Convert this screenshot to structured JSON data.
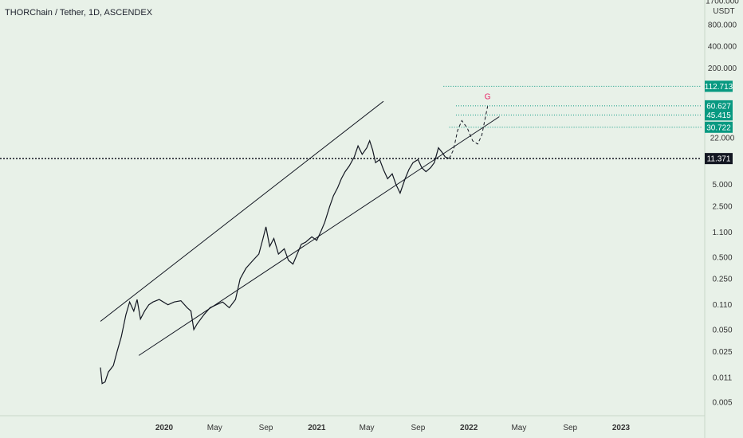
{
  "header": {
    "title": "THORChain / Tether, 1D, ASCENDEX"
  },
  "chart_data": {
    "type": "line",
    "scale": "log",
    "currency": "USDT",
    "y_tick_labels": [
      "1700.000",
      "800.000",
      "400.000",
      "200.000",
      "22.000",
      "5.000",
      "2.500",
      "1.100",
      "0.500",
      "0.250",
      "0.110",
      "0.050",
      "0.025",
      "0.011",
      "0.005"
    ],
    "y_ticks": [
      1700,
      800,
      400,
      200,
      22,
      5,
      2.5,
      1.1,
      0.5,
      0.25,
      0.11,
      0.05,
      0.025,
      0.011,
      0.005
    ],
    "x_tick_labels": [
      "2020",
      "May",
      "Sep",
      "2021",
      "May",
      "Sep",
      "2022",
      "May",
      "Sep",
      "2023"
    ],
    "x_tick_dates": [
      "2020-01-01",
      "2020-05-01",
      "2020-09-01",
      "2021-01-01",
      "2021-05-01",
      "2021-09-01",
      "2022-01-01",
      "2022-05-01",
      "2022-09-01",
      "2023-01-01"
    ],
    "x_tick_bold": [
      true,
      false,
      false,
      true,
      false,
      false,
      true,
      false,
      false,
      true
    ],
    "series": [
      {
        "type": "price",
        "points": [
          [
            "2019-08-01",
            0.015
          ],
          [
            "2019-08-05",
            0.009
          ],
          [
            "2019-08-12",
            0.0095
          ],
          [
            "2019-08-20",
            0.013
          ],
          [
            "2019-09-01",
            0.016
          ],
          [
            "2019-09-10",
            0.025
          ],
          [
            "2019-09-20",
            0.04
          ],
          [
            "2019-10-01",
            0.08
          ],
          [
            "2019-10-10",
            0.12
          ],
          [
            "2019-10-20",
            0.09
          ],
          [
            "2019-10-28",
            0.13
          ],
          [
            "2019-11-05",
            0.07
          ],
          [
            "2019-11-15",
            0.09
          ],
          [
            "2019-11-25",
            0.11
          ],
          [
            "2019-12-05",
            0.12
          ],
          [
            "2019-12-20",
            0.13
          ],
          [
            "2020-01-10",
            0.11
          ],
          [
            "2020-01-25",
            0.12
          ],
          [
            "2020-02-10",
            0.125
          ],
          [
            "2020-02-25",
            0.1
          ],
          [
            "2020-03-05",
            0.09
          ],
          [
            "2020-03-12",
            0.05
          ],
          [
            "2020-03-20",
            0.06
          ],
          [
            "2020-04-05",
            0.08
          ],
          [
            "2020-04-20",
            0.1
          ],
          [
            "2020-05-05",
            0.11
          ],
          [
            "2020-05-20",
            0.12
          ],
          [
            "2020-06-05",
            0.1
          ],
          [
            "2020-06-20",
            0.13
          ],
          [
            "2020-07-01",
            0.25
          ],
          [
            "2020-07-15",
            0.35
          ],
          [
            "2020-08-01",
            0.45
          ],
          [
            "2020-08-15",
            0.55
          ],
          [
            "2020-08-25",
            0.9
          ],
          [
            "2020-09-01",
            1.3
          ],
          [
            "2020-09-10",
            0.7
          ],
          [
            "2020-09-20",
            0.9
          ],
          [
            "2020-10-01",
            0.55
          ],
          [
            "2020-10-15",
            0.65
          ],
          [
            "2020-10-25",
            0.45
          ],
          [
            "2020-11-05",
            0.4
          ],
          [
            "2020-11-15",
            0.55
          ],
          [
            "2020-11-25",
            0.75
          ],
          [
            "2020-12-05",
            0.8
          ],
          [
            "2020-12-20",
            0.95
          ],
          [
            "2021-01-01",
            0.85
          ],
          [
            "2021-01-10",
            1.1
          ],
          [
            "2021-01-20",
            1.5
          ],
          [
            "2021-02-01",
            2.5
          ],
          [
            "2021-02-10",
            3.5
          ],
          [
            "2021-02-20",
            4.5
          ],
          [
            "2021-03-01",
            6
          ],
          [
            "2021-03-10",
            7.5
          ],
          [
            "2021-03-20",
            9
          ],
          [
            "2021-04-01",
            12
          ],
          [
            "2021-04-10",
            17
          ],
          [
            "2021-04-20",
            13
          ],
          [
            "2021-05-01",
            16
          ],
          [
            "2021-05-08",
            20
          ],
          [
            "2021-05-15",
            15
          ],
          [
            "2021-05-22",
            10
          ],
          [
            "2021-06-01",
            11
          ],
          [
            "2021-06-10",
            8
          ],
          [
            "2021-06-20",
            6
          ],
          [
            "2021-07-01",
            7
          ],
          [
            "2021-07-10",
            5
          ],
          [
            "2021-07-20",
            3.8
          ],
          [
            "2021-08-01",
            6
          ],
          [
            "2021-08-10",
            8
          ],
          [
            "2021-08-20",
            10
          ],
          [
            "2021-09-01",
            11
          ],
          [
            "2021-09-10",
            8.5
          ],
          [
            "2021-09-20",
            7.5
          ],
          [
            "2021-10-01",
            8.5
          ],
          [
            "2021-10-10",
            10
          ],
          [
            "2021-10-20",
            16
          ],
          [
            "2021-10-28",
            14
          ],
          [
            "2021-11-05",
            12
          ],
          [
            "2021-11-15",
            11.4
          ]
        ]
      },
      {
        "type": "projection",
        "style": "dashed",
        "points": [
          [
            "2021-11-15",
            11.4
          ],
          [
            "2021-11-25",
            15
          ],
          [
            "2021-12-05",
            28
          ],
          [
            "2021-12-15",
            38
          ],
          [
            "2021-12-28",
            30
          ],
          [
            "2022-01-10",
            20
          ],
          [
            "2022-01-22",
            18
          ],
          [
            "2022-02-01",
            24
          ],
          [
            "2022-02-08",
            38
          ],
          [
            "2022-02-15",
            60
          ]
        ]
      }
    ],
    "trend_lines": [
      {
        "from": [
          "2019-08-01",
          0.065
        ],
        "to": [
          "2021-06-10",
          70
        ]
      },
      {
        "from": [
          "2019-11-01",
          0.022
        ],
        "to": [
          "2022-03-15",
          43
        ]
      }
    ],
    "price_levels": [
      {
        "label": "112.713",
        "value": 112.713,
        "from": "2021-11-01",
        "color": "#089981"
      },
      {
        "label": "60.627",
        "value": 60.627,
        "from": "2021-12-01",
        "color": "#089981"
      },
      {
        "label": "45.415",
        "value": 45.415,
        "from": "2021-12-01",
        "color": "#089981"
      },
      {
        "label": "30.722",
        "value": 30.722,
        "from": "2021-11-15",
        "color": "#089981"
      }
    ],
    "current_price": {
      "label": "11.371",
      "value": 11.371,
      "color": "#131722"
    },
    "annotation": {
      "text": "G",
      "at": [
        "2022-02-15",
        75
      ],
      "color": "#e91e63"
    }
  },
  "colors": {
    "background": "#e8f1e8",
    "price_line": "#131722",
    "level_tag": "#089981",
    "annotation": "#e91e63"
  }
}
